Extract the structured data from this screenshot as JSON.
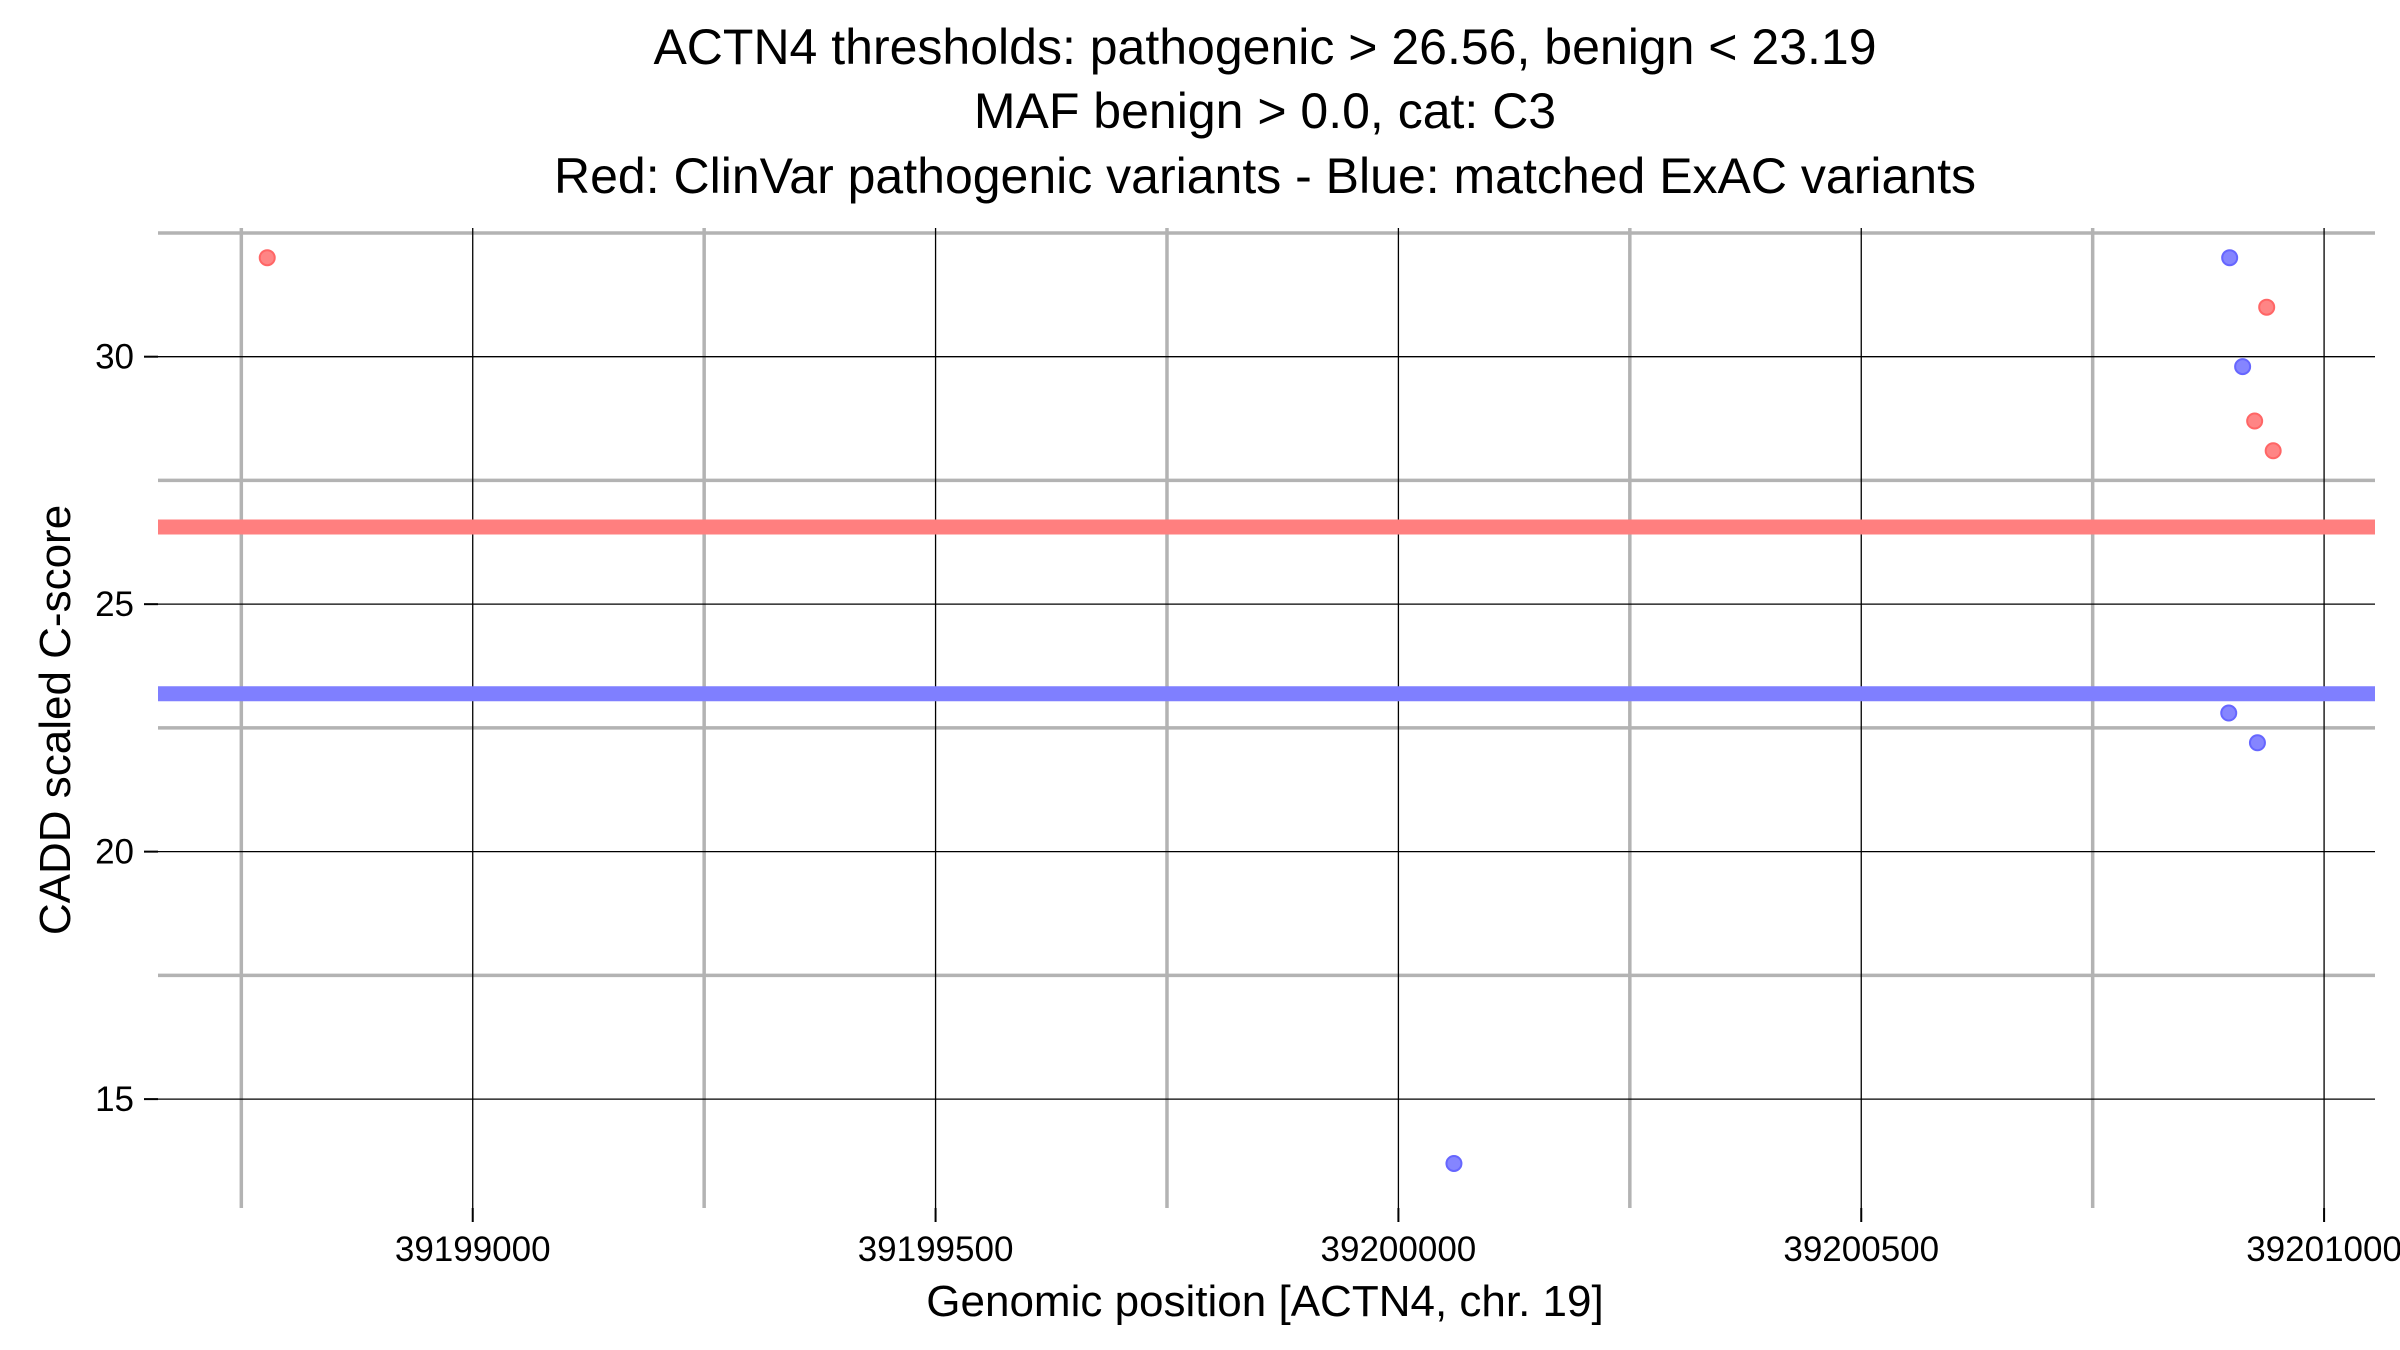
{
  "chart_data": {
    "type": "scatter",
    "title_lines": [
      "ACTN4 thresholds: pathogenic > 26.56, benign < 23.19",
      "MAF benign > 0.0, cat: C3",
      "Red: ClinVar pathogenic variants - Blue: matched ExAC variants"
    ],
    "xlabel": "Genomic position [ACTN4, chr. 19]",
    "ylabel": "CADD scaled C-score",
    "xlim": [
      39198660,
      39201055
    ],
    "ylim": [
      12.8,
      32.6
    ],
    "x_ticks": [
      39199000,
      39199500,
      39200000,
      39200500,
      39201000
    ],
    "x_tick_labels": [
      "39199000",
      "39199500",
      "39200000",
      "39200500",
      "39201000"
    ],
    "x_minor_ticks": [
      39198750,
      39199250,
      39199750,
      39200250,
      39200750
    ],
    "y_ticks": [
      15,
      20,
      25,
      30
    ],
    "y_tick_labels": [
      "15",
      "20",
      "25",
      "30"
    ],
    "y_minor_ticks": [
      17.5,
      22.5,
      27.5,
      32.5
    ],
    "grid": true,
    "thresholds": [
      {
        "name": "pathogenic",
        "value": 26.56,
        "color": "#ff7f7f"
      },
      {
        "name": "benign",
        "value": 23.19,
        "color": "#7f7fff"
      }
    ],
    "series": [
      {
        "color": "#ff6666",
        "points": [
          {
            "x": 39198778,
            "y": 32.0
          },
          {
            "x": 39200938,
            "y": 31.0
          },
          {
            "x": 39200925,
            "y": 28.7
          },
          {
            "x": 39200945,
            "y": 28.1
          }
        ]
      },
      {
        "color": "#6666ff",
        "points": [
          {
            "x": 39200898,
            "y": 32.0
          },
          {
            "x": 39200912,
            "y": 29.8
          },
          {
            "x": 39200897,
            "y": 22.8
          },
          {
            "x": 39200928,
            "y": 22.2
          },
          {
            "x": 39200060,
            "y": 13.7
          }
        ]
      }
    ]
  }
}
